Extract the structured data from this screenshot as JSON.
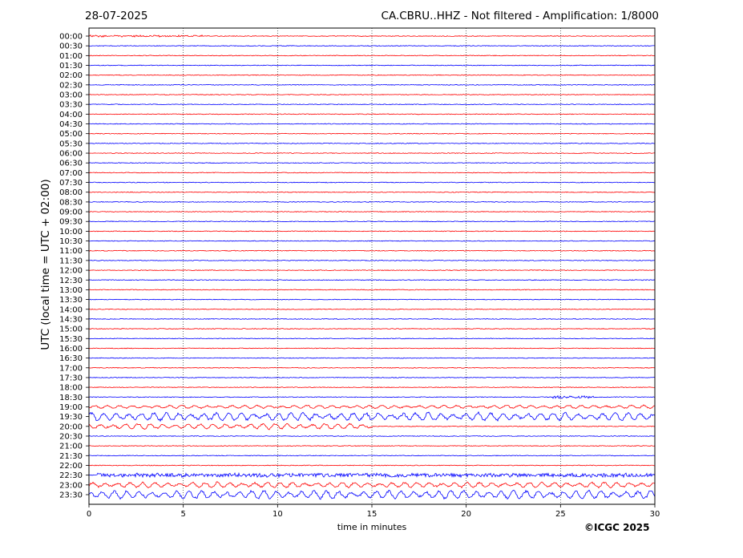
{
  "header": {
    "date": "28-07-2025",
    "title": "CA.CBRU..HHZ - Not filtered - Amplification: 1/8000"
  },
  "footer": {
    "credit": "©ICGC 2025"
  },
  "colors": {
    "even_row": "#ff0000",
    "odd_row": "#0000ff",
    "grid": "#000000",
    "frame": "#000000"
  },
  "chart_data": {
    "type": "line",
    "title": "CA.CBRU..HHZ - Not filtered - Amplification: 1/8000",
    "xlabel": "time in minutes",
    "ylabel": "UTC (local time = UTC + 02:00)",
    "xlim": [
      0,
      30
    ],
    "xticks": [
      0,
      5,
      10,
      15,
      20,
      25,
      30
    ],
    "grid": "vertical dotted lines at x ticks",
    "rows": [
      "00:00",
      "00:30",
      "01:00",
      "01:30",
      "02:00",
      "02:30",
      "03:00",
      "03:30",
      "04:00",
      "04:30",
      "05:00",
      "05:30",
      "06:00",
      "06:30",
      "07:00",
      "07:30",
      "08:00",
      "08:30",
      "09:00",
      "09:30",
      "10:00",
      "10:30",
      "11:00",
      "11:30",
      "12:00",
      "12:30",
      "13:00",
      "13:30",
      "14:00",
      "14:30",
      "15:00",
      "15:30",
      "16:00",
      "16:30",
      "17:00",
      "17:30",
      "18:00",
      "18:30",
      "19:00",
      "19:30",
      "20:00",
      "20:30",
      "21:00",
      "21:30",
      "22:00",
      "22:30",
      "23:00",
      "23:30"
    ],
    "row_colors": "alternating red (even) / blue (odd)",
    "events": [
      {
        "row": "00:00",
        "start_min": 0,
        "end_min": 6,
        "amplitude": "small",
        "kind": "noise"
      },
      {
        "row": "18:30",
        "start_min": 24.6,
        "end_min": 26.8,
        "amplitude": "small",
        "kind": "burst"
      },
      {
        "row": "19:00",
        "start_min": 0,
        "end_min": 30,
        "amplitude": "small",
        "kind": "oscillation"
      },
      {
        "row": "19:30",
        "start_min": 0,
        "end_min": 30,
        "amplitude": "large",
        "kind": "oscillation"
      },
      {
        "row": "20:00",
        "start_min": 0,
        "end_min": 15,
        "amplitude": "medium",
        "kind": "oscillation"
      },
      {
        "row": "22:30",
        "start_min": 0.4,
        "end_min": 30,
        "amplitude": "medium",
        "kind": "burst"
      },
      {
        "row": "23:00",
        "start_min": 0,
        "end_min": 30,
        "amplitude": "medium",
        "kind": "oscillation"
      },
      {
        "row": "23:30",
        "start_min": 0,
        "end_min": 30,
        "amplitude": "large",
        "kind": "oscillation"
      }
    ]
  }
}
